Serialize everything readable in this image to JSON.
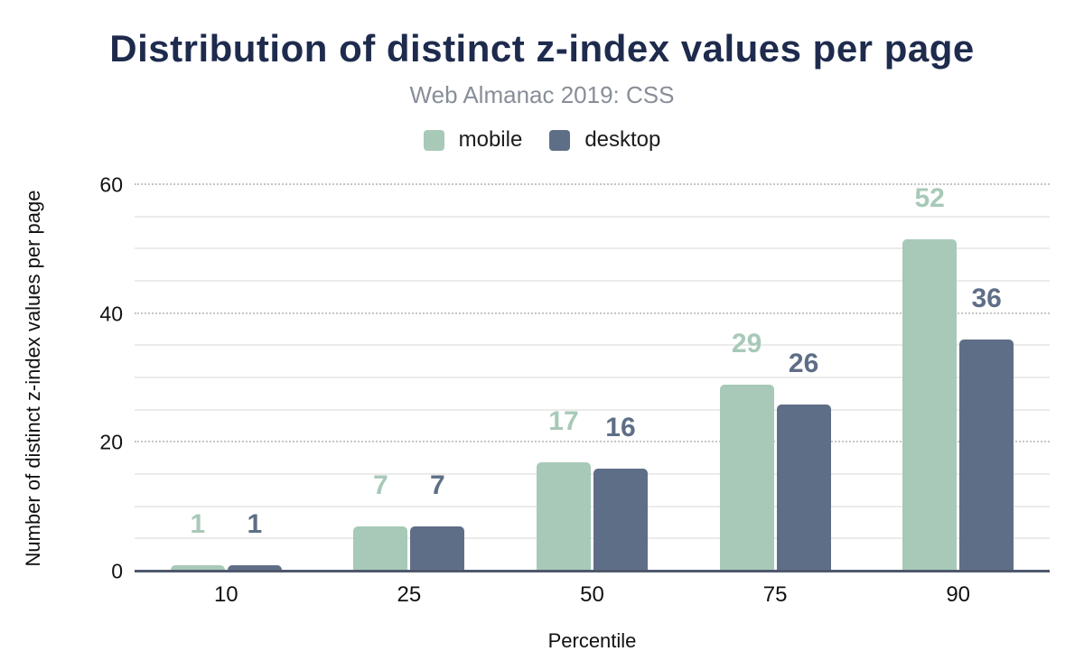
{
  "chart_data": {
    "type": "bar",
    "title": "Distribution of distinct z-index values per page",
    "subtitle": "Web Almanac 2019: CSS",
    "xlabel": "Percentile",
    "ylabel": "Number of distinct z-index values per page",
    "categories": [
      "10",
      "25",
      "50",
      "75",
      "90"
    ],
    "series": [
      {
        "name": "mobile",
        "color": "#a8c9b8",
        "values": [
          1,
          7,
          17,
          29,
          52
        ]
      },
      {
        "name": "desktop",
        "color": "#5f6e87",
        "values": [
          1,
          7,
          16,
          26,
          36
        ]
      }
    ],
    "ylim": [
      0,
      60
    ],
    "yticks": [
      0,
      20,
      40,
      60
    ],
    "minor_grid_step": 5,
    "major_grid_step": 20,
    "grid": "on",
    "legend_position": "top",
    "colors": {
      "title": "#1e2b4d",
      "subtitle": "#878e98",
      "baseline": "#4e586c",
      "minor_gridline": "#ebebeb",
      "major_gridline": "#c6c6c6"
    }
  }
}
